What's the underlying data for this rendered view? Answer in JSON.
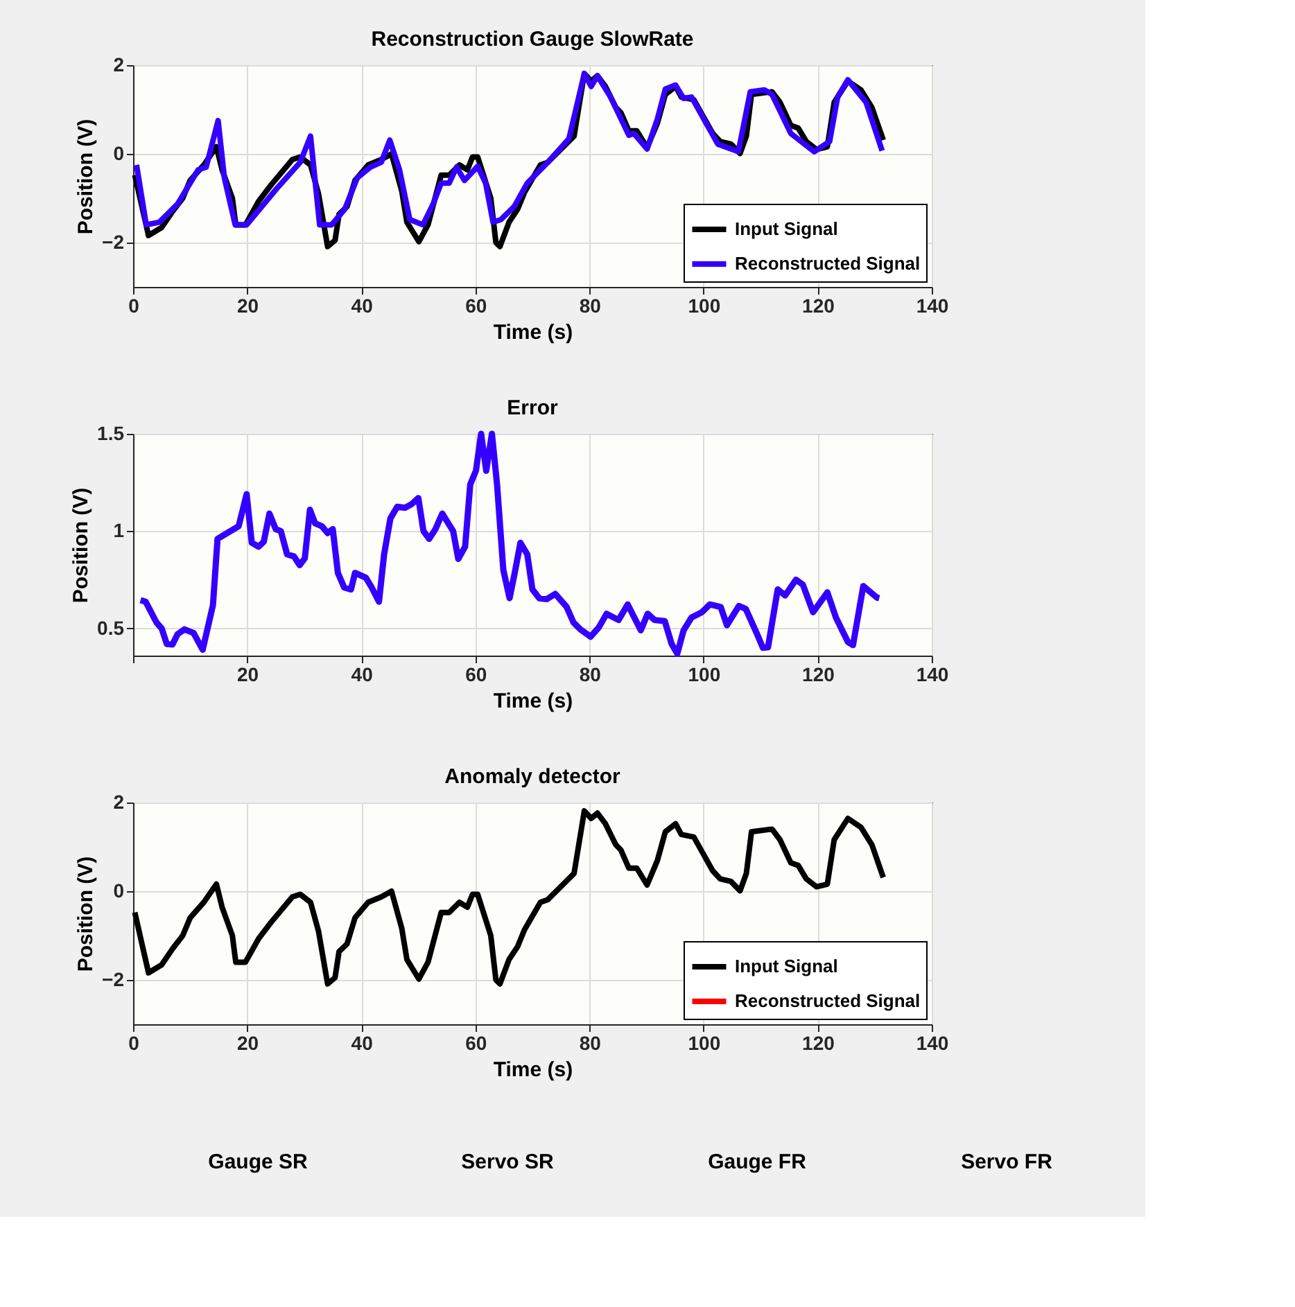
{
  "chart_data": [
    {
      "type": "line",
      "title": "Reconstruction Gauge SlowRate",
      "xlabel": "Time (s)",
      "ylabel": "Position (V)",
      "xlim": [
        0,
        140
      ],
      "xticks": [
        0,
        20,
        40,
        60,
        80,
        100,
        120,
        140
      ],
      "ylim": [
        -3,
        2
      ],
      "yticks": [
        -2,
        0,
        2
      ],
      "grid": true,
      "legend": "bottom right",
      "line_style": "solid",
      "marker": "none",
      "series": [
        {
          "name": "Input Signal",
          "color": "#000000",
          "x": [
            0.3,
            2.7,
            5,
            6.9,
            8.7,
            10,
            12.4,
            14.6,
            15.6,
            17.4,
            18,
            19.7,
            22,
            24.2,
            27.9,
            29.3,
            31.1,
            32.5,
            34.1,
            35.4,
            36.1,
            37.5,
            38.9,
            41.2,
            43.5,
            45.3,
            47.1,
            48,
            50.1,
            51.7,
            54,
            55.4,
            57.2,
            58.6,
            59.5,
            60.4,
            62.7,
            63.6,
            64.3,
            65.9,
            67.4,
            68.6,
            71.4,
            72.7,
            77.3,
            79.1,
            80.3,
            81.4,
            82.8,
            84.6,
            85.5,
            86.9,
            88.3,
            90.1,
            91.9,
            93.3,
            95.1,
            96.1,
            98.3,
            101.6,
            102.9,
            104.8,
            106.4,
            107.5,
            108.4,
            112,
            113.4,
            115.3,
            116.6,
            118,
            119.8,
            121.7,
            122.9,
            125.3,
            127.6,
            129.5,
            131.5
          ],
          "values": [
            -0.48,
            -1.84,
            -1.66,
            -1.3,
            -1.0,
            -0.6,
            -0.25,
            0.16,
            -0.36,
            -1.0,
            -1.6,
            -1.6,
            -1.07,
            -0.7,
            -0.13,
            -0.07,
            -0.25,
            -0.9,
            -2.09,
            -1.95,
            -1.36,
            -1.19,
            -0.6,
            -0.25,
            -0.13,
            0,
            -0.84,
            -1.54,
            -1.98,
            -1.6,
            -0.48,
            -0.48,
            -0.25,
            -0.36,
            -0.07,
            -0.07,
            -1.0,
            -2.0,
            -2.09,
            -1.54,
            -1.25,
            -0.87,
            -0.25,
            -0.19,
            0.4,
            1.81,
            1.64,
            1.76,
            1.52,
            1.05,
            0.93,
            0.52,
            0.52,
            0.14,
            0.69,
            1.34,
            1.52,
            1.28,
            1.22,
            0.46,
            0.28,
            0.22,
            0.01,
            0.4,
            1.34,
            1.4,
            1.16,
            0.64,
            0.58,
            0.28,
            0.1,
            0.16,
            1.16,
            1.64,
            1.44,
            1.05,
            0.31
          ]
        },
        {
          "name": "Reconstructed Signal",
          "color": "#3300ff",
          "x": [
            0.6,
            2.3,
            4.6,
            7.8,
            11.4,
            12.8,
            14.9,
            16,
            17.9,
            19.9,
            25.2,
            29.3,
            31.1,
            32.7,
            34.8,
            37.1,
            39.3,
            41.6,
            43.5,
            45,
            46.7,
            48.5,
            50.8,
            52.6,
            54,
            55.4,
            56.7,
            58.1,
            60.4,
            61.8,
            63.1,
            64.5,
            66.8,
            69.1,
            72.7,
            76.4,
            79.1,
            80.3,
            81.4,
            83.7,
            86.9,
            87.8,
            90.1,
            91.9,
            93.3,
            95.1,
            96.5,
            97.9,
            102.5,
            106.1,
            108.2,
            110.7,
            112,
            115.3,
            117.1,
            119.4,
            122.1,
            123.5,
            125.3,
            128.5,
            131.3
          ],
          "values": [
            -0.25,
            -1.6,
            -1.54,
            -1.13,
            -0.36,
            -0.3,
            0.75,
            -0.54,
            -1.6,
            -1.6,
            -0.78,
            -0.19,
            0.4,
            -1.6,
            -1.6,
            -1.25,
            -0.54,
            -0.3,
            -0.19,
            0.31,
            -0.36,
            -1.48,
            -1.6,
            -1.13,
            -0.66,
            -0.66,
            -0.3,
            -0.6,
            -0.28,
            -0.66,
            -1.54,
            -1.48,
            -1.19,
            -0.66,
            -0.19,
            0.34,
            1.81,
            1.52,
            1.76,
            1.28,
            0.42,
            0.46,
            0.11,
            0.78,
            1.46,
            1.55,
            1.25,
            1.28,
            0.22,
            0.05,
            1.4,
            1.44,
            1.34,
            0.46,
            0.28,
            0.05,
            0.28,
            1.28,
            1.67,
            1.16,
            0.07
          ]
        }
      ]
    },
    {
      "type": "line",
      "title": "Error",
      "xlabel": "Time (s)",
      "ylabel": "Position (V)",
      "xlim": [
        0,
        140
      ],
      "xticks": [
        {
          "value": 0,
          "label": null
        },
        20,
        40,
        60,
        80,
        100,
        120,
        140
      ],
      "ylim": [
        0.36,
        1.5
      ],
      "yticks": [
        0.5,
        1,
        1.5
      ],
      "grid": true,
      "legend": false,
      "line_style": "solid",
      "marker": "none",
      "series": [
        {
          "color": "#3300ff",
          "x": [
            1.3,
            2.2,
            4.1,
            5.0,
            5.9,
            6.9,
            7.8,
            9.0,
            10.6,
            12.2,
            14.0,
            14.8,
            16.2,
            18.5,
            19.9,
            20.8,
            22.0,
            22.9,
            23.9,
            25.0,
            25.9,
            27.0,
            28.2,
            29.2,
            30.1,
            31.0,
            31.9,
            33.1,
            34.1,
            35.0,
            35.9,
            37.0,
            38.2,
            38.9,
            40.8,
            41.7,
            43.1,
            44.0,
            45.1,
            46.3,
            47.7,
            48.9,
            50.0,
            50.9,
            51.9,
            53.0,
            54.2,
            56.1,
            57.0,
            58.2,
            59.1,
            60.1,
            61.0,
            61.9,
            62.9,
            63.8,
            64.9,
            66.0,
            66.9,
            67.9,
            69.1,
            70.0,
            71.2,
            72.5,
            74.0,
            76.0,
            77.2,
            78.4,
            80.2,
            81.6,
            83.0,
            85.1,
            86.7,
            89.0,
            90.2,
            91.4,
            93.2,
            94.4,
            95.4,
            96.5,
            97.9,
            99.7,
            101.1,
            103.0,
            104.1,
            106.2,
            107.4,
            109.3,
            110.4,
            111.3,
            113.0,
            114.3,
            116.2,
            117.4,
            119.2,
            121.7,
            123.2,
            125.3,
            126.2,
            128.0,
            130.4,
            130.8
          ],
          "values": [
            0.645,
            0.637,
            0.53,
            0.5,
            0.42,
            0.417,
            0.47,
            0.495,
            0.476,
            0.39,
            0.62,
            0.96,
            0.985,
            1.025,
            1.19,
            0.94,
            0.92,
            0.945,
            1.09,
            1.01,
            1.0,
            0.88,
            0.87,
            0.825,
            0.86,
            1.11,
            1.04,
            1.025,
            0.99,
            1.01,
            0.785,
            0.71,
            0.7,
            0.785,
            0.76,
            0.717,
            0.637,
            0.88,
            1.065,
            1.125,
            1.12,
            1.14,
            1.17,
            1.0,
            0.96,
            1.01,
            1.09,
            1.0,
            0.857,
            0.92,
            1.24,
            1.31,
            1.5,
            1.31,
            1.5,
            1.24,
            0.8,
            0.655,
            0.785,
            0.94,
            0.88,
            0.7,
            0.655,
            0.65,
            0.677,
            0.61,
            0.53,
            0.495,
            0.457,
            0.503,
            0.575,
            0.543,
            0.623,
            0.49,
            0.575,
            0.543,
            0.537,
            0.42,
            0.37,
            0.49,
            0.556,
            0.583,
            0.623,
            0.61,
            0.516,
            0.615,
            0.6,
            0.476,
            0.4,
            0.403,
            0.7,
            0.669,
            0.75,
            0.725,
            0.583,
            0.685,
            0.556,
            0.43,
            0.414,
            0.717,
            0.658,
            0.655
          ]
        }
      ]
    },
    {
      "type": "line",
      "title": "Anomaly detector",
      "xlabel": "Time (s)",
      "ylabel": "Position (V)",
      "xlim": [
        0,
        140
      ],
      "xticks": [
        0,
        20,
        40,
        60,
        80,
        100,
        120,
        140
      ],
      "ylim": [
        -3,
        2
      ],
      "yticks": [
        -2,
        0,
        2
      ],
      "grid": true,
      "legend": "bottom right",
      "line_style": "solid",
      "marker": "none",
      "series": [
        {
          "name": "Input Signal",
          "color": "#000000",
          "x": [
            0.3,
            2.7,
            5,
            6.9,
            8.7,
            10,
            12.4,
            14.6,
            15.6,
            17.4,
            18,
            19.7,
            22,
            24.2,
            27.9,
            29.3,
            31.1,
            32.5,
            34.1,
            35.4,
            36.1,
            37.5,
            38.9,
            41.2,
            43.5,
            45.3,
            47.1,
            48,
            50.1,
            51.7,
            54,
            55.4,
            57.2,
            58.6,
            59.5,
            60.4,
            62.7,
            63.6,
            64.3,
            65.9,
            67.4,
            68.6,
            71.4,
            72.7,
            77.3,
            79.1,
            80.3,
            81.4,
            82.8,
            84.6,
            85.5,
            86.9,
            88.3,
            90.1,
            91.9,
            93.3,
            95.1,
            96.1,
            98.3,
            101.6,
            102.9,
            104.8,
            106.4,
            107.5,
            108.4,
            112,
            113.4,
            115.3,
            116.6,
            118,
            119.8,
            121.7,
            122.9,
            125.3,
            127.6,
            129.5,
            131.5
          ],
          "values": [
            -0.48,
            -1.84,
            -1.66,
            -1.3,
            -1.0,
            -0.6,
            -0.25,
            0.16,
            -0.36,
            -1.0,
            -1.6,
            -1.6,
            -1.07,
            -0.7,
            -0.13,
            -0.07,
            -0.25,
            -0.9,
            -2.09,
            -1.95,
            -1.36,
            -1.19,
            -0.6,
            -0.25,
            -0.13,
            0,
            -0.84,
            -1.54,
            -1.98,
            -1.6,
            -0.48,
            -0.48,
            -0.25,
            -0.36,
            -0.07,
            -0.07,
            -1.0,
            -2.0,
            -2.09,
            -1.54,
            -1.25,
            -0.87,
            -0.25,
            -0.19,
            0.4,
            1.81,
            1.64,
            1.76,
            1.52,
            1.05,
            0.93,
            0.52,
            0.52,
            0.14,
            0.69,
            1.34,
            1.52,
            1.28,
            1.22,
            0.46,
            0.28,
            0.22,
            0.01,
            0.4,
            1.34,
            1.4,
            1.16,
            0.64,
            0.58,
            0.28,
            0.1,
            0.16,
            1.16,
            1.64,
            1.44,
            1.05,
            0.31
          ]
        },
        {
          "name": "Reconstructed Signal",
          "color": "#ff0000"
        }
      ]
    },
    {
      "type": "other",
      "annotations": [
        "Gauge SR",
        "Servo SR",
        "Gauge FR",
        "Servo FR"
      ]
    }
  ]
}
